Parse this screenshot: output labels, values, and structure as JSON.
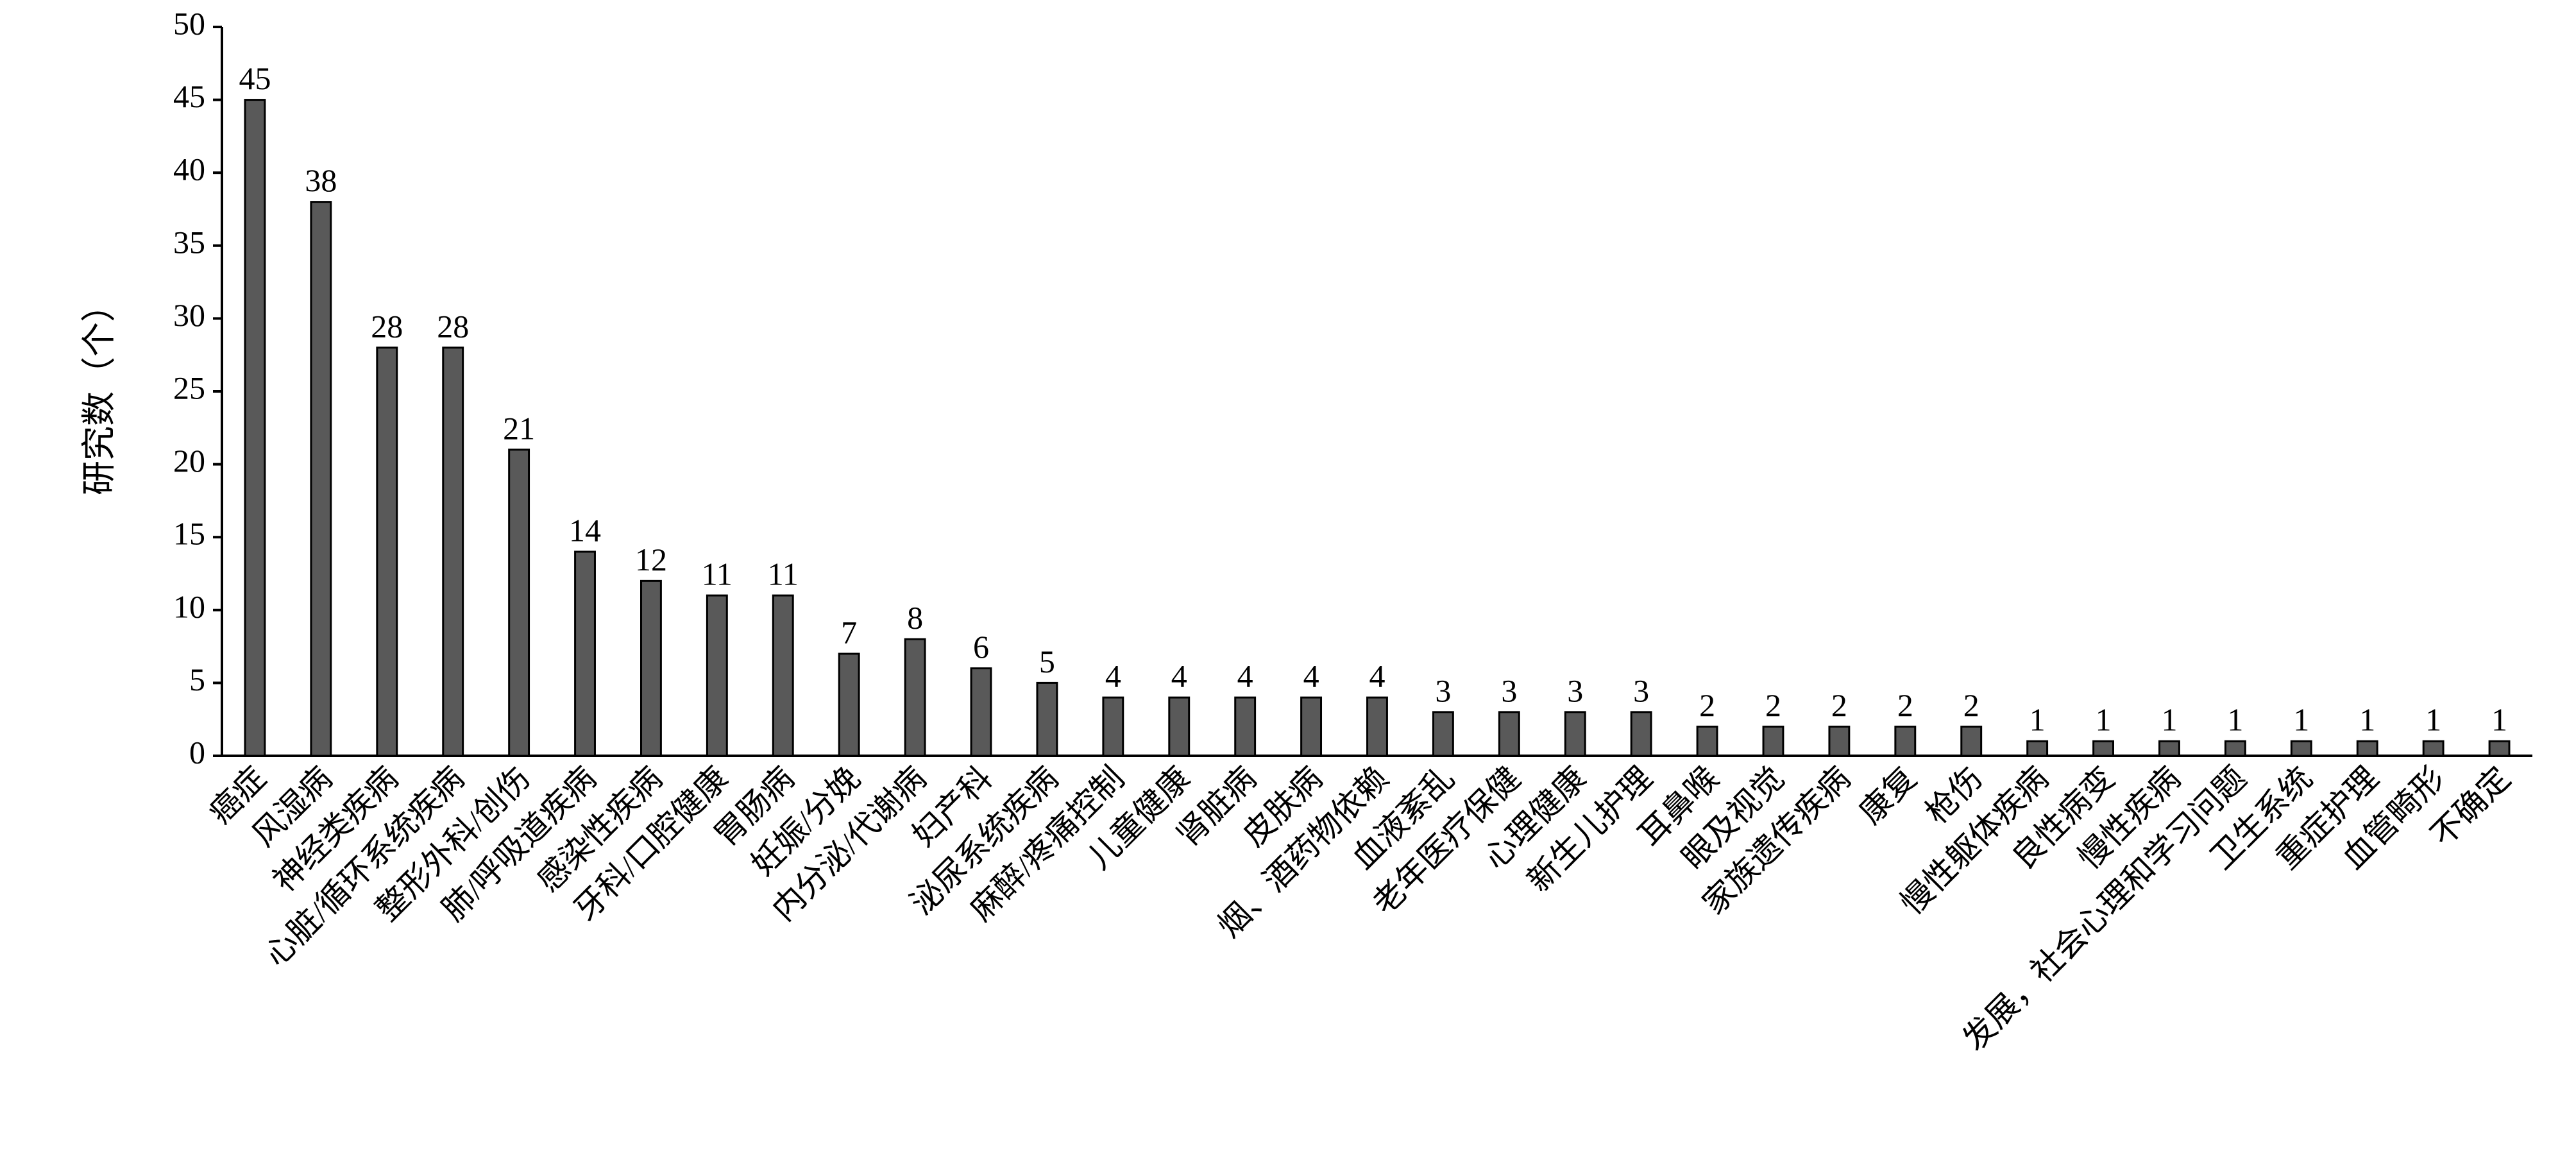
{
  "chart_data": {
    "type": "bar",
    "y_label": "研究数（个）",
    "categories": [
      "癌症",
      "风湿病",
      "神经类疾病",
      "心脏/循环系统疾病",
      "整形外科/创伤",
      "肺/呼吸道疾病",
      "感染性疾病",
      "牙科/口腔健康",
      "胃肠病",
      "妊娠/分娩",
      "内分泌/代谢病",
      "妇产科",
      "泌尿系统疾病",
      "麻醉/疼痛控制",
      "儿童健康",
      "肾脏病",
      "皮肤病",
      "烟、酒药物依赖",
      "血液紊乱",
      "老年医疗保健",
      "心理健康",
      "新生儿护理",
      "耳鼻喉",
      "眼及视觉",
      "家族遗传疾病",
      "康复",
      "枪伤",
      "慢性躯体疾病",
      "良性病变",
      "慢性疾病",
      "发展，社会心理和学习问题",
      "卫生系统",
      "重症护理",
      "血管畸形",
      "不确定"
    ],
    "values": [
      45,
      38,
      28,
      28,
      21,
      14,
      12,
      11,
      11,
      7,
      8,
      6,
      5,
      4,
      4,
      4,
      4,
      4,
      3,
      3,
      3,
      3,
      2,
      2,
      2,
      2,
      2,
      1,
      1,
      1,
      1,
      1,
      1,
      1,
      1
    ],
    "color": "#595959",
    "ylim": [
      0,
      50
    ],
    "yticks": [
      0,
      5,
      10,
      15,
      20,
      25,
      30,
      35,
      40,
      45,
      50
    ],
    "grid": false
  }
}
